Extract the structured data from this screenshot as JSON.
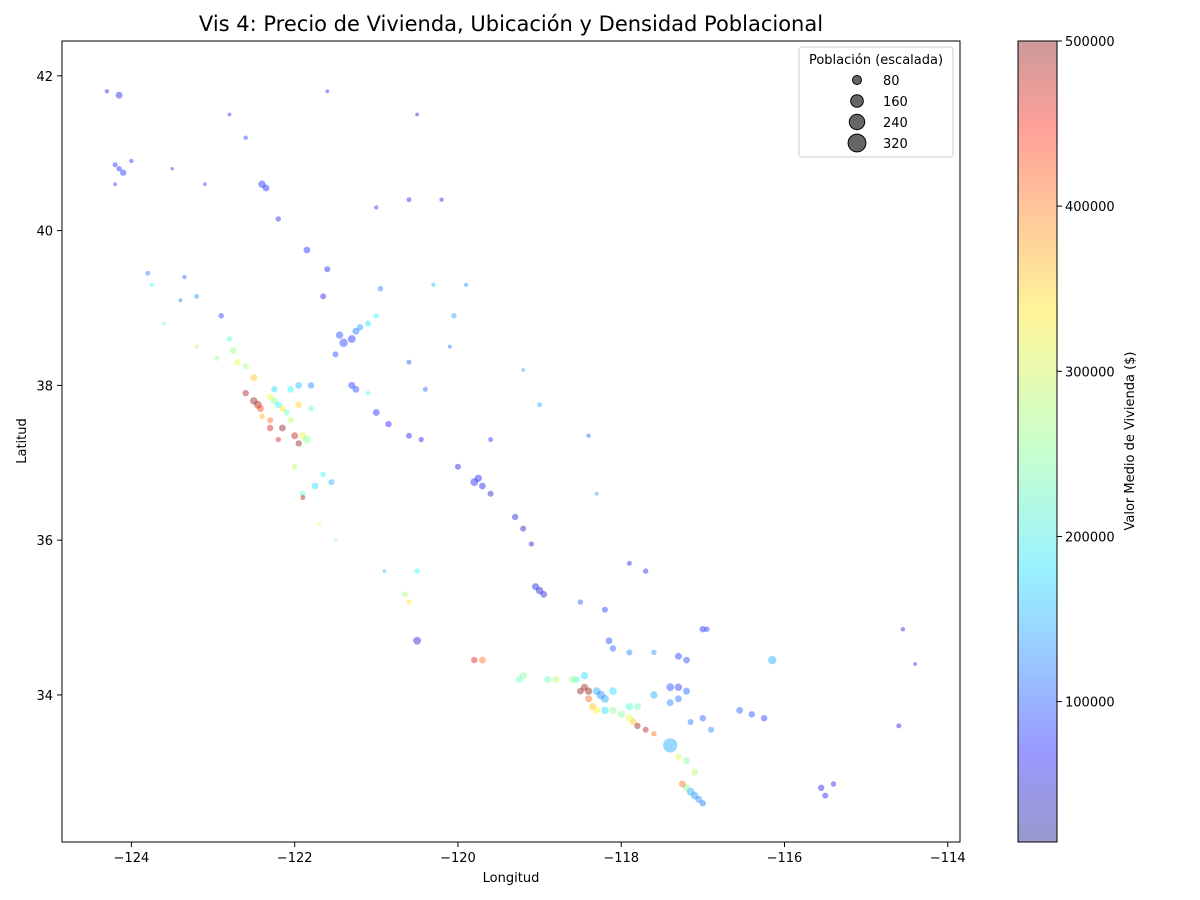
{
  "chart_data": {
    "type": "scatter",
    "title": "Vis 4: Precio de Vivienda, Ubicación y Densidad Poblacional",
    "xlabel": "Longitud",
    "ylabel": "Latitud",
    "xlim": [
      -124.85,
      -113.85
    ],
    "ylim": [
      32.1,
      42.45
    ],
    "xticks": [
      -124,
      -122,
      -120,
      -118,
      -116,
      -114
    ],
    "yticks": [
      34,
      36,
      38,
      40,
      42
    ],
    "x_tick_labels": [
      "−124",
      "−122",
      "−120",
      "−118",
      "−116",
      "−114"
    ],
    "y_tick_labels": [
      "34",
      "36",
      "38",
      "40",
      "42"
    ],
    "grid": false,
    "colormap": "jet",
    "point_alpha": 0.4,
    "colorbar": {
      "label": "Valor Medio de Vivienda ($)",
      "range": [
        14999,
        500001
      ],
      "ticks": [
        100000,
        200000,
        300000,
        400000,
        500000
      ],
      "tick_labels": [
        "100000",
        "200000",
        "300000",
        "400000",
        "500000"
      ]
    },
    "size_legend": {
      "title": "Población (escalada)",
      "placement": "top-right",
      "entries": [
        {
          "label": "80",
          "value": 80
        },
        {
          "label": "160",
          "value": 160
        },
        {
          "label": "240",
          "value": 240
        },
        {
          "label": "320",
          "value": 320
        }
      ]
    },
    "points": [
      [
        -124.15,
        40.8,
        80000,
        30
      ],
      [
        -124.1,
        40.75,
        85000,
        40
      ],
      [
        -124.2,
        40.85,
        75000,
        25
      ],
      [
        -124.15,
        41.75,
        70000,
        45
      ],
      [
        -124.3,
        41.8,
        60000,
        20
      ],
      [
        -124.0,
        40.9,
        90000,
        20
      ],
      [
        -124.2,
        40.6,
        85000,
        15
      ],
      [
        -123.8,
        39.45,
        130000,
        25
      ],
      [
        -123.75,
        39.3,
        200000,
        15
      ],
      [
        -123.6,
        38.8,
        230000,
        12
      ],
      [
        -123.35,
        39.4,
        110000,
        20
      ],
      [
        -123.2,
        39.15,
        140000,
        25
      ],
      [
        -123.4,
        39.1,
        120000,
        15
      ],
      [
        -122.9,
        38.9,
        90000,
        30
      ],
      [
        -122.75,
        38.45,
        260000,
        45
      ],
      [
        -122.7,
        38.3,
        300000,
        40
      ],
      [
        -122.5,
        38.1,
        350000,
        50
      ],
      [
        -122.6,
        37.9,
        480000,
        40
      ],
      [
        -122.5,
        37.8,
        500000,
        55
      ],
      [
        -122.45,
        37.75,
        480000,
        60
      ],
      [
        -122.42,
        37.7,
        420000,
        50
      ],
      [
        -122.3,
        37.85,
        300000,
        45
      ],
      [
        -122.25,
        37.8,
        260000,
        50
      ],
      [
        -122.2,
        37.75,
        200000,
        45
      ],
      [
        -122.1,
        37.65,
        240000,
        40
      ],
      [
        -122.05,
        37.55,
        280000,
        35
      ],
      [
        -122.15,
        37.45,
        500000,
        45
      ],
      [
        -122.0,
        37.35,
        480000,
        50
      ],
      [
        -121.9,
        37.35,
        300000,
        55
      ],
      [
        -121.85,
        37.3,
        250000,
        60
      ],
      [
        -121.95,
        37.25,
        500000,
        40
      ],
      [
        -122.2,
        37.3,
        460000,
        30
      ],
      [
        -122.3,
        37.55,
        400000,
        35
      ],
      [
        -122.4,
        37.6,
        360000,
        30
      ],
      [
        -122.0,
        36.95,
        280000,
        30
      ],
      [
        -121.9,
        36.6,
        230000,
        35
      ],
      [
        -121.75,
        36.7,
        180000,
        45
      ],
      [
        -121.9,
        36.55,
        470000,
        25
      ],
      [
        -121.65,
        36.85,
        200000,
        30
      ],
      [
        -121.55,
        36.75,
        150000,
        35
      ],
      [
        -122.05,
        37.95,
        200000,
        45
      ],
      [
        -122.25,
        37.95,
        180000,
        40
      ],
      [
        -121.95,
        38.0,
        160000,
        45
      ],
      [
        -121.8,
        38.0,
        130000,
        40
      ],
      [
        -121.3,
        38.6,
        80000,
        60
      ],
      [
        -121.4,
        38.55,
        90000,
        70
      ],
      [
        -121.45,
        38.65,
        100000,
        55
      ],
      [
        -121.25,
        38.7,
        120000,
        50
      ],
      [
        -121.2,
        38.75,
        140000,
        40
      ],
      [
        -121.1,
        38.8,
        180000,
        35
      ],
      [
        -121.0,
        38.9,
        200000,
        30
      ],
      [
        -121.5,
        38.4,
        95000,
        35
      ],
      [
        -121.3,
        38.0,
        90000,
        50
      ],
      [
        -121.25,
        37.95,
        100000,
        45
      ],
      [
        -121.0,
        37.65,
        80000,
        45
      ],
      [
        -120.85,
        37.5,
        75000,
        40
      ],
      [
        -120.6,
        37.35,
        70000,
        35
      ],
      [
        -120.45,
        37.3,
        65000,
        30
      ],
      [
        -120.0,
        36.95,
        60000,
        35
      ],
      [
        -119.8,
        36.75,
        70000,
        60
      ],
      [
        -119.75,
        36.8,
        75000,
        55
      ],
      [
        -119.7,
        36.7,
        65000,
        45
      ],
      [
        -119.6,
        36.6,
        60000,
        35
      ],
      [
        -119.3,
        36.3,
        55000,
        40
      ],
      [
        -119.2,
        36.15,
        50000,
        35
      ],
      [
        -119.1,
        35.95,
        55000,
        30
      ],
      [
        -119.0,
        35.35,
        60000,
        55
      ],
      [
        -119.05,
        35.4,
        65000,
        50
      ],
      [
        -118.95,
        35.3,
        55000,
        45
      ],
      [
        -122.4,
        40.6,
        80000,
        55
      ],
      [
        -122.35,
        40.55,
        75000,
        45
      ],
      [
        -122.2,
        40.15,
        70000,
        30
      ],
      [
        -121.85,
        39.75,
        80000,
        45
      ],
      [
        -121.6,
        39.5,
        75000,
        35
      ],
      [
        -121.65,
        39.15,
        70000,
        35
      ],
      [
        -120.95,
        39.25,
        130000,
        30
      ],
      [
        -120.05,
        38.9,
        150000,
        30
      ],
      [
        -120.6,
        38.3,
        110000,
        25
      ],
      [
        -120.4,
        37.95,
        120000,
        25
      ],
      [
        -118.3,
        34.05,
        150000,
        60
      ],
      [
        -118.25,
        34.0,
        130000,
        70
      ],
      [
        -118.2,
        33.95,
        150000,
        65
      ],
      [
        -118.1,
        34.05,
        180000,
        60
      ],
      [
        -118.4,
        34.05,
        500000,
        55
      ],
      [
        -118.45,
        34.1,
        490000,
        50
      ],
      [
        -118.5,
        34.05,
        500000,
        45
      ],
      [
        -118.4,
        33.95,
        400000,
        50
      ],
      [
        -118.35,
        33.85,
        350000,
        55
      ],
      [
        -118.3,
        33.8,
        320000,
        50
      ],
      [
        -118.2,
        33.8,
        180000,
        55
      ],
      [
        -118.1,
        33.8,
        260000,
        50
      ],
      [
        -118.0,
        33.75,
        250000,
        55
      ],
      [
        -117.9,
        33.7,
        300000,
        55
      ],
      [
        -117.85,
        33.65,
        350000,
        45
      ],
      [
        -117.8,
        33.6,
        500000,
        40
      ],
      [
        -117.7,
        33.55,
        480000,
        35
      ],
      [
        -117.6,
        33.5,
        400000,
        30
      ],
      [
        -117.9,
        33.85,
        220000,
        55
      ],
      [
        -117.8,
        33.85,
        240000,
        50
      ],
      [
        -117.6,
        34.0,
        150000,
        55
      ],
      [
        -117.4,
        34.1,
        100000,
        60
      ],
      [
        -117.3,
        34.1,
        90000,
        55
      ],
      [
        -117.2,
        34.05,
        110000,
        50
      ],
      [
        -117.3,
        33.95,
        120000,
        45
      ],
      [
        -117.4,
        33.9,
        130000,
        50
      ],
      [
        -117.15,
        32.75,
        150000,
        60
      ],
      [
        -117.1,
        32.7,
        140000,
        55
      ],
      [
        -117.2,
        32.8,
        250000,
        55
      ],
      [
        -117.25,
        32.85,
        400000,
        45
      ],
      [
        -117.05,
        32.65,
        130000,
        50
      ],
      [
        -117.0,
        32.6,
        120000,
        40
      ],
      [
        -117.1,
        33.0,
        280000,
        45
      ],
      [
        -117.3,
        33.2,
        300000,
        40
      ],
      [
        -117.2,
        33.15,
        250000,
        45
      ],
      [
        -117.4,
        33.35,
        150000,
        200
      ],
      [
        -118.55,
        34.2,
        220000,
        50
      ],
      [
        -118.45,
        34.25,
        180000,
        55
      ],
      [
        -118.6,
        34.2,
        260000,
        45
      ],
      [
        -118.8,
        34.2,
        280000,
        50
      ],
      [
        -118.9,
        34.2,
        230000,
        45
      ],
      [
        -119.2,
        34.25,
        250000,
        50
      ],
      [
        -119.25,
        34.2,
        230000,
        45
      ],
      [
        -119.7,
        34.45,
        400000,
        45
      ],
      [
        -119.8,
        34.45,
        460000,
        40
      ],
      [
        -120.5,
        34.7,
        50000,
        60
      ],
      [
        -120.65,
        35.3,
        270000,
        35
      ],
      [
        -120.5,
        35.6,
        200000,
        30
      ],
      [
        -120.6,
        35.2,
        330000,
        30
      ],
      [
        -117.0,
        34.85,
        80000,
        40
      ],
      [
        -117.3,
        34.5,
        90000,
        50
      ],
      [
        -117.2,
        34.45,
        100000,
        45
      ],
      [
        -116.95,
        34.85,
        90000,
        30
      ],
      [
        -116.55,
        33.8,
        110000,
        45
      ],
      [
        -116.4,
        33.75,
        100000,
        40
      ],
      [
        -116.25,
        33.7,
        90000,
        40
      ],
      [
        -116.15,
        34.45,
        150000,
        70
      ],
      [
        -115.55,
        32.8,
        70000,
        40
      ],
      [
        -115.5,
        32.7,
        65000,
        35
      ],
      [
        -115.4,
        32.85,
        60000,
        30
      ],
      [
        -114.6,
        33.6,
        60000,
        25
      ],
      [
        -114.55,
        34.85,
        55000,
        20
      ],
      [
        -114.4,
        34.4,
        65000,
        15
      ],
      [
        -116.9,
        33.55,
        130000,
        35
      ],
      [
        -117.0,
        33.7,
        110000,
        40
      ],
      [
        -117.15,
        33.65,
        120000,
        35
      ],
      [
        -118.15,
        34.7,
        100000,
        45
      ],
      [
        -118.1,
        34.6,
        110000,
        40
      ],
      [
        -117.9,
        34.55,
        130000,
        35
      ],
      [
        -117.6,
        34.55,
        140000,
        30
      ],
      [
        -118.2,
        35.1,
        90000,
        35
      ],
      [
        -118.5,
        35.2,
        110000,
        30
      ],
      [
        -117.7,
        35.6,
        70000,
        30
      ],
      [
        -117.9,
        35.7,
        80000,
        25
      ],
      [
        -119.6,
        37.3,
        90000,
        25
      ],
      [
        -119.0,
        37.75,
        150000,
        25
      ],
      [
        -118.4,
        37.35,
        110000,
        20
      ],
      [
        -118.3,
        36.6,
        140000,
        15
      ],
      [
        -121.7,
        36.2,
        300000,
        15
      ],
      [
        -121.5,
        36.0,
        260000,
        12
      ],
      [
        -120.9,
        35.6,
        160000,
        15
      ],
      [
        -123.1,
        40.6,
        90000,
        15
      ],
      [
        -123.5,
        40.8,
        85000,
        12
      ],
      [
        -122.8,
        41.5,
        80000,
        15
      ],
      [
        -122.6,
        41.2,
        90000,
        20
      ],
      [
        -121.6,
        41.8,
        70000,
        15
      ],
      [
        -120.5,
        41.5,
        60000,
        15
      ],
      [
        -120.2,
        40.4,
        70000,
        20
      ],
      [
        -120.6,
        40.4,
        80000,
        25
      ],
      [
        -121.0,
        40.3,
        90000,
        20
      ],
      [
        -119.9,
        39.3,
        140000,
        20
      ],
      [
        -120.3,
        39.3,
        160000,
        20
      ],
      [
        -120.1,
        38.5,
        120000,
        15
      ],
      [
        -119.2,
        38.2,
        150000,
        15
      ],
      [
        -121.1,
        37.9,
        200000,
        20
      ],
      [
        -121.8,
        37.7,
        240000,
        35
      ],
      [
        -122.3,
        37.45,
        460000,
        40
      ],
      [
        -122.15,
        37.7,
        330000,
        40
      ],
      [
        -121.95,
        37.75,
        340000,
        45
      ],
      [
        -122.6,
        38.25,
        270000,
        35
      ],
      [
        -122.8,
        38.6,
        220000,
        30
      ],
      [
        -122.95,
        38.35,
        250000,
        25
      ],
      [
        -123.2,
        38.5,
        280000,
        20
      ]
    ]
  }
}
